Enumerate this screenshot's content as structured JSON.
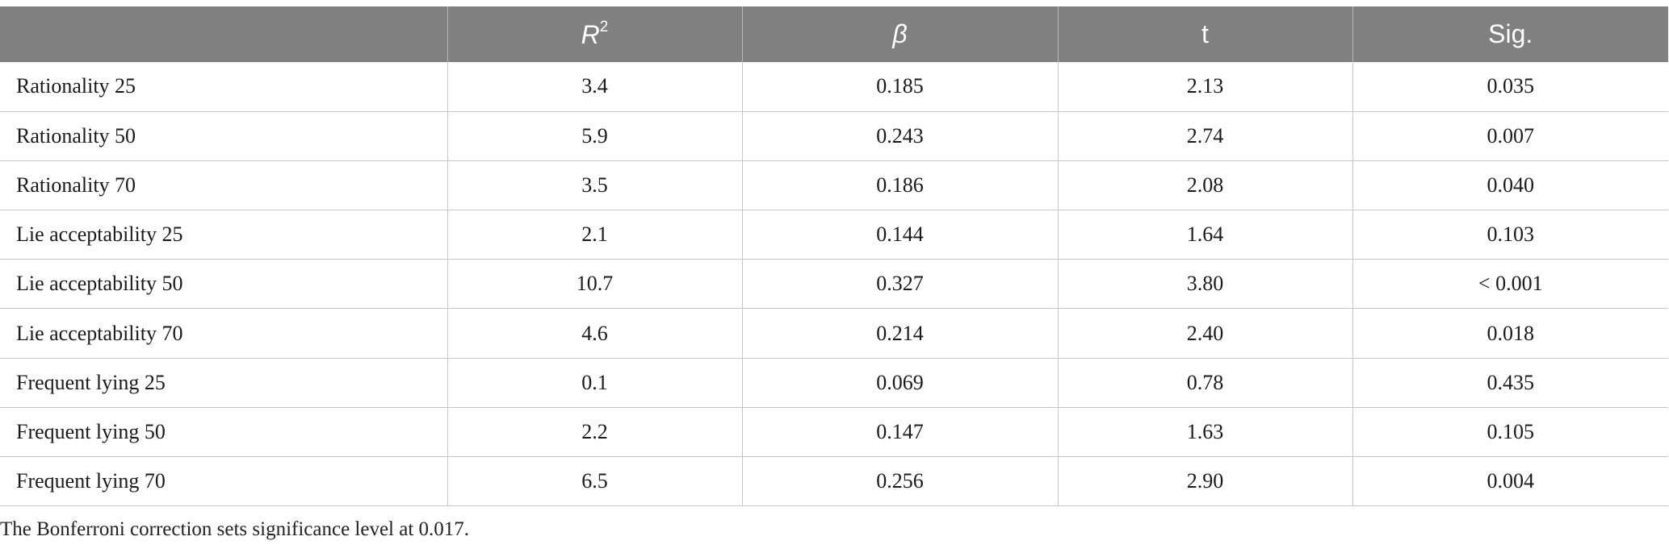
{
  "table": {
    "headers": [
      "",
      "R",
      "β",
      "t",
      "Sig."
    ],
    "header_r_superscript": "2",
    "rows": [
      [
        "Rationality 25",
        "3.4",
        "0.185",
        "2.13",
        "0.035"
      ],
      [
        "Rationality 50",
        "5.9",
        "0.243",
        "2.74",
        "0.007"
      ],
      [
        "Rationality 70",
        "3.5",
        "0.186",
        "2.08",
        "0.040"
      ],
      [
        "Lie acceptability 25",
        "2.1",
        "0.144",
        "1.64",
        "0.103"
      ],
      [
        "Lie acceptability 50",
        "10.7",
        "0.327",
        "3.80",
        "< 0.001"
      ],
      [
        "Lie acceptability 70",
        "4.6",
        "0.214",
        "2.40",
        "0.018"
      ],
      [
        "Frequent lying 25",
        "0.1",
        "0.069",
        "0.78",
        "0.435"
      ],
      [
        "Frequent lying 50",
        "2.2",
        "0.147",
        "1.63",
        "0.105"
      ],
      [
        "Frequent lying 70",
        "6.5",
        "0.256",
        "2.90",
        "0.004"
      ]
    ]
  },
  "note": "The Bonferroni correction sets significance level at 0.017.",
  "colors": {
    "header_background": "#808080",
    "header_text": "#ffffff",
    "grid_line": "#c8c8c8"
  }
}
